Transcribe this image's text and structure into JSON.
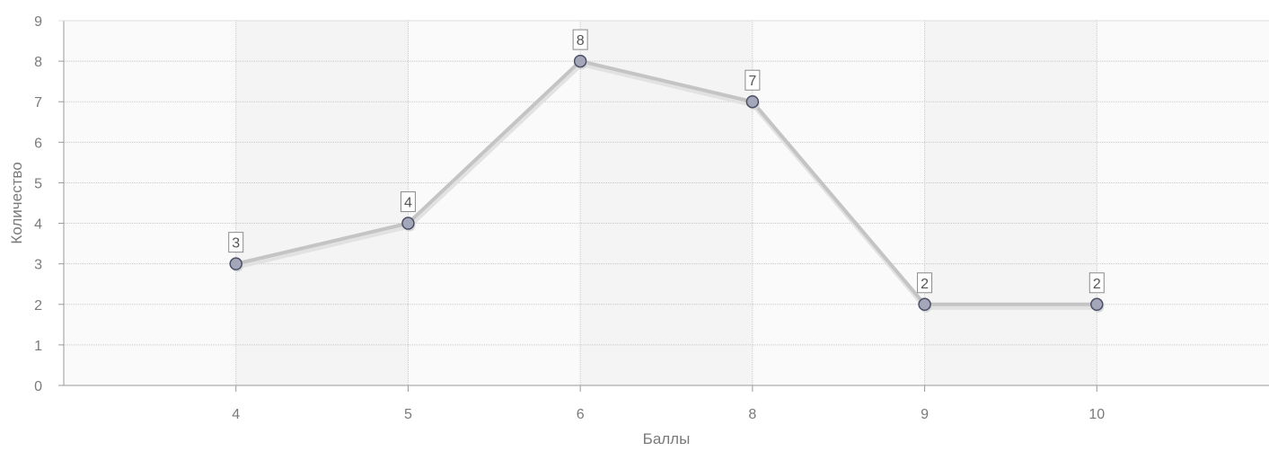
{
  "chart_data": {
    "type": "line",
    "title": "",
    "xlabel": "Баллы",
    "ylabel": "Количество",
    "categories": [
      "4",
      "5",
      "6",
      "8",
      "9",
      "10"
    ],
    "series": [
      {
        "values": [
          3,
          4,
          8,
          7,
          2,
          2
        ]
      }
    ],
    "data_labels": [
      "3",
      "4",
      "8",
      "7",
      "2",
      "2"
    ],
    "y_ticks": [
      "0",
      "1",
      "2",
      "3",
      "4",
      "5",
      "6",
      "7",
      "8",
      "9"
    ],
    "ylim": [
      0,
      9
    ],
    "grid": true,
    "legend": "none",
    "colors": {
      "line": "#c4c4c4",
      "marker_fill": "#a3a7b9",
      "marker_stroke": "#4b4f66",
      "grid": "#c8c8c8",
      "band": "#f4f4f4",
      "axis": "#999999",
      "text": "#7a7a7a"
    }
  }
}
